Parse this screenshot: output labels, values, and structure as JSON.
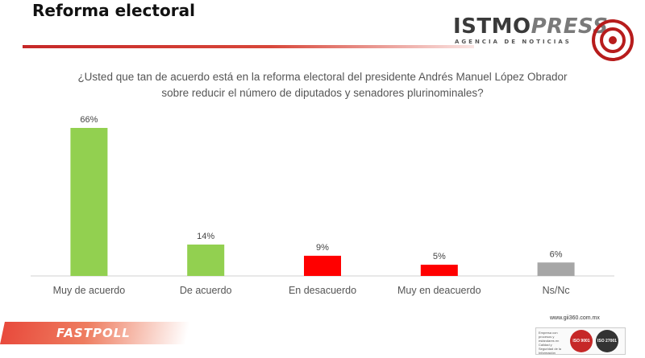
{
  "header": {
    "title": "Reforma electoral",
    "logo_main": "ISTMO",
    "logo_accent": "PRESS",
    "logo_sub": "AGENCIA DE NOTICIAS"
  },
  "question": "¿Usted que tan de acuerdo está en la reforma electoral del presidente Andrés Manuel López Obrador sobre reducir el número de diputados y senadores plurinominales?",
  "chart_data": {
    "type": "bar",
    "categories": [
      "Muy de acuerdo",
      "De acuerdo",
      "En desacuerdo",
      "Muy en deacuerdo",
      "Ns/Nc"
    ],
    "values": [
      66,
      14,
      9,
      5,
      6
    ],
    "labels": [
      "66%",
      "14%",
      "9%",
      "5%",
      "6%"
    ],
    "colors": [
      "#92d050",
      "#92d050",
      "#ff0000",
      "#ff0000",
      "#a6a6a6"
    ],
    "title": "",
    "xlabel": "",
    "ylabel": "",
    "ylim": [
      0,
      70
    ],
    "grid": false
  },
  "footer": {
    "brand": "FASTPOLL",
    "url": "www.gii360.com.mx",
    "cert_text": "Empresa con procesos y estándares en Calidad y Seguridad de la Información",
    "iso_1": "ISO 9001",
    "iso_2": "ISO 27001"
  }
}
